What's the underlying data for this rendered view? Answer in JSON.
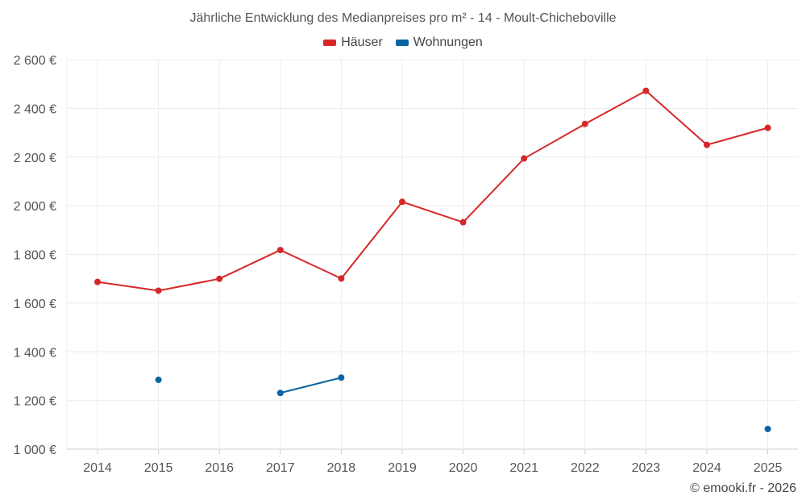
{
  "chart_data": {
    "type": "line",
    "title": "Jährliche Entwicklung des Medianpreises pro m² - 14 - Moult-Chicheboville",
    "xlabel": "",
    "ylabel": "",
    "categories": [
      "2014",
      "2015",
      "2016",
      "2017",
      "2018",
      "2019",
      "2020",
      "2021",
      "2022",
      "2023",
      "2024",
      "2025"
    ],
    "ylim": [
      1000,
      2600
    ],
    "yticks": [
      1000,
      1200,
      1400,
      1600,
      1800,
      2000,
      2200,
      2400,
      2600
    ],
    "ytick_labels": [
      "1 000 €",
      "1 200 €",
      "1 400 €",
      "1 600 €",
      "1 800 €",
      "2 000 €",
      "2 200 €",
      "2 400 €",
      "2 600 €"
    ],
    "grid": true,
    "legend_position": "top-center",
    "series": [
      {
        "name": "Häuser",
        "color": "#d62728",
        "values": [
          1687,
          1651,
          1700,
          1818,
          1701,
          2016,
          1932,
          2194,
          2336,
          2472,
          2250,
          2320
        ]
      },
      {
        "name": "Wohnungen",
        "color": "#0a64a0",
        "values": [
          null,
          1285,
          null,
          1231,
          1294,
          null,
          null,
          null,
          null,
          null,
          null,
          1083
        ]
      }
    ]
  },
  "legend": {
    "houses_label": "Häuser",
    "apartments_label": "Wohnungen"
  },
  "footer": {
    "copyright": "© emooki.fr - 2026"
  }
}
